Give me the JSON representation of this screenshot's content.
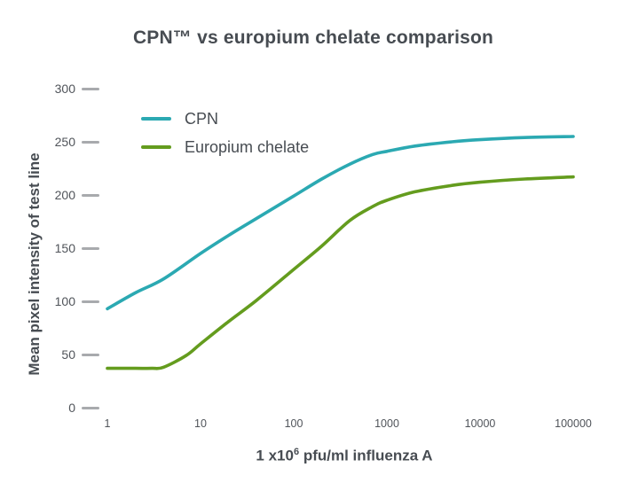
{
  "title": "CPN™ vs europium chelate comparison",
  "axes": {
    "y_title": "Mean pixel intensity of test line",
    "x_title_pre": "1 x10",
    "x_title_sup": "6",
    "x_title_post": " pfu/ml influenza A",
    "y_ticks": [
      300,
      250,
      200,
      150,
      100,
      50,
      0
    ],
    "x_ticks": [
      "1",
      "10",
      "100",
      "1000",
      "10000",
      "100000"
    ]
  },
  "colors": {
    "cpn_line": "#2BA9B2",
    "europium_line": "#649C1E",
    "text": "#474C52",
    "tick_dash": "#A8AAAD",
    "background": "#FFFFFF"
  },
  "chart_data": {
    "type": "line",
    "title": "CPN™ vs europium chelate comparison",
    "xlabel": "1 x10⁶ pfu/ml influenza A",
    "ylabel": "Mean pixel intensity of test line",
    "x_scale": "log",
    "xlim": [
      1,
      100000
    ],
    "ylim": [
      0,
      300
    ],
    "grid": false,
    "legend_position": "top-left-inside",
    "series": [
      {
        "name": "CPN",
        "color": "#2BA9B2",
        "points": [
          [
            1,
            93
          ],
          [
            2,
            108
          ],
          [
            4,
            121
          ],
          [
            10,
            145
          ],
          [
            20,
            162
          ],
          [
            40,
            178
          ],
          [
            100,
            199
          ],
          [
            200,
            215
          ],
          [
            400,
            229
          ],
          [
            700,
            238
          ],
          [
            1000,
            241
          ],
          [
            2000,
            246
          ],
          [
            5000,
            250
          ],
          [
            10000,
            252
          ],
          [
            30000,
            254
          ],
          [
            100000,
            255
          ]
        ]
      },
      {
        "name": "Europium chelate",
        "color": "#649C1E",
        "points": [
          [
            1,
            37
          ],
          [
            2,
            37
          ],
          [
            3,
            37
          ],
          [
            4,
            38
          ],
          [
            7,
            49
          ],
          [
            10,
            60
          ],
          [
            20,
            81
          ],
          [
            40,
            101
          ],
          [
            100,
            130
          ],
          [
            200,
            152
          ],
          [
            400,
            176
          ],
          [
            700,
            189
          ],
          [
            1000,
            195
          ],
          [
            2000,
            203
          ],
          [
            5000,
            209
          ],
          [
            10000,
            212
          ],
          [
            30000,
            215
          ],
          [
            100000,
            217
          ]
        ]
      }
    ]
  }
}
